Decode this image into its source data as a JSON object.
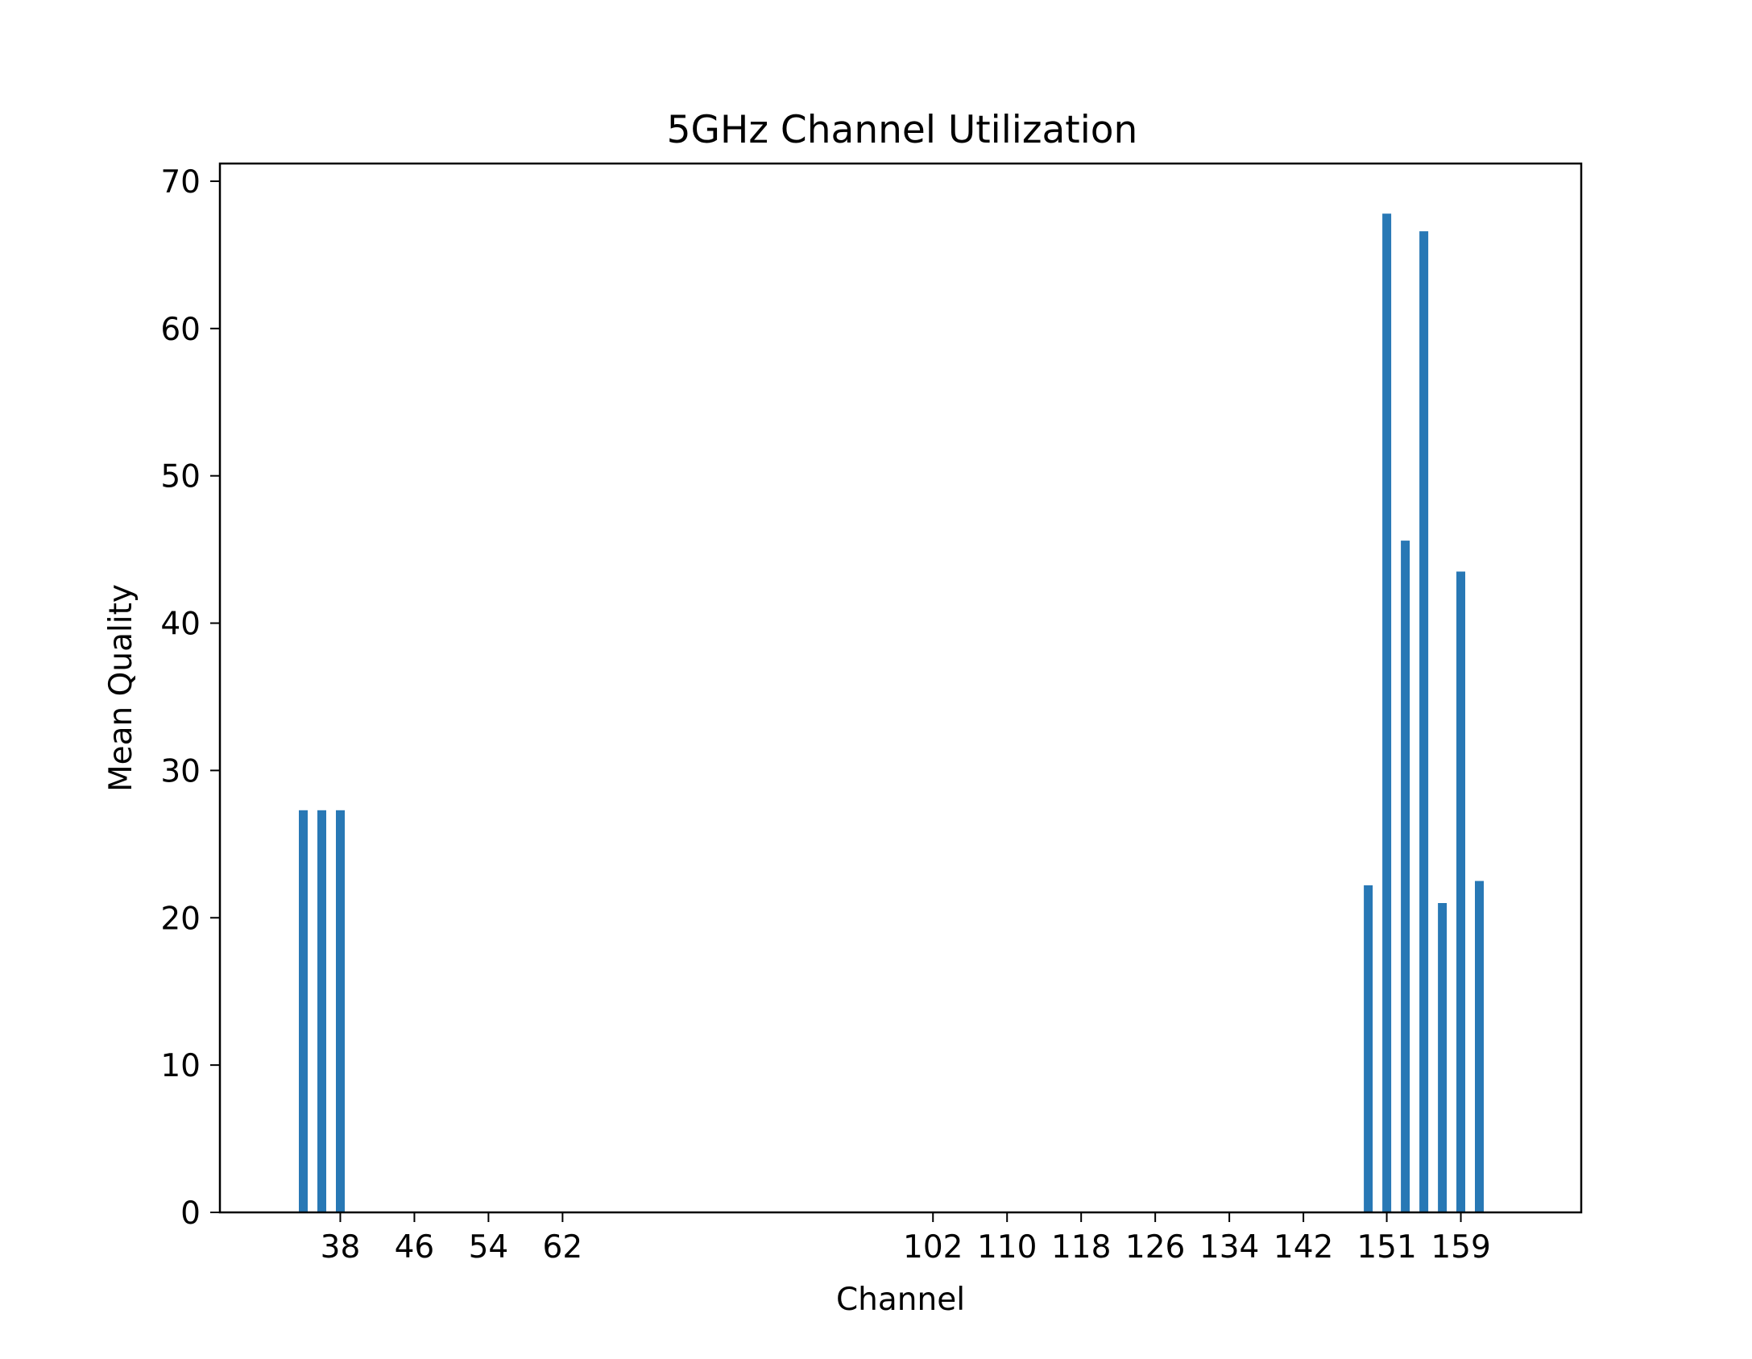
{
  "chart_data": {
    "type": "bar",
    "title": "5GHz Channel Utilization",
    "xlabel": "Channel",
    "ylabel": "Mean Quality",
    "bar_color": "#2878b5",
    "x": [
      34,
      36,
      38,
      149,
      151,
      153,
      155,
      157,
      159,
      161
    ],
    "values": [
      27.3,
      27.3,
      27.3,
      22.2,
      67.8,
      45.6,
      66.6,
      21.0,
      43.5,
      22.5
    ],
    "x_ticks": [
      38,
      46,
      54,
      62,
      102,
      110,
      118,
      126,
      134,
      142,
      151,
      159
    ],
    "x_tick_labels": [
      "38",
      "46",
      "54",
      "62",
      "102",
      "110",
      "118",
      "126",
      "134",
      "142",
      "151",
      "159"
    ],
    "y_ticks": [
      0,
      10,
      20,
      30,
      40,
      50,
      60,
      70
    ],
    "y_tick_labels": [
      "0",
      "10",
      "20",
      "30",
      "40",
      "50",
      "60",
      "70"
    ],
    "xlim": [
      25,
      172
    ],
    "ylim": [
      0,
      71.2
    ],
    "grid": false,
    "legend": "none"
  }
}
